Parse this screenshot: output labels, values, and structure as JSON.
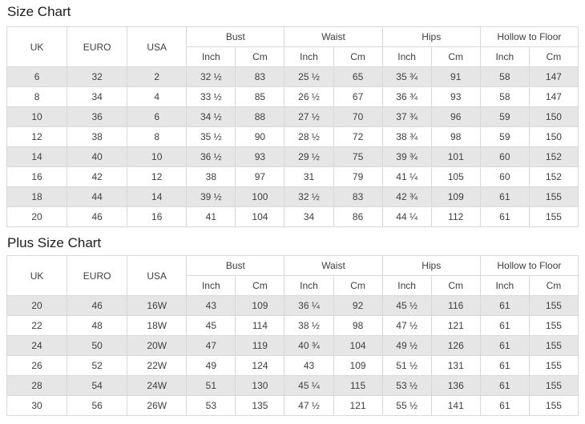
{
  "colors": {
    "row_stripe": "#e6e6e6",
    "table_border": "#d8d8d8",
    "cell_text": "#404040",
    "title_text": "#1c1c1c",
    "background": "#ffffff"
  },
  "tables": [
    {
      "title": "Size Chart",
      "headers": {
        "size_systems": [
          "UK",
          "EURO",
          "USA"
        ],
        "groups": [
          "Bust",
          "Waist",
          "Hips",
          "Hollow to Floor"
        ],
        "units": [
          "Inch",
          "Cm"
        ]
      },
      "rows": [
        [
          "6",
          "32",
          "2",
          "32 ½",
          "83",
          "25 ½",
          "65",
          "35 ¾",
          "91",
          "58",
          "147"
        ],
        [
          "8",
          "34",
          "4",
          "33 ½",
          "85",
          "26 ½",
          "67",
          "36 ¾",
          "93",
          "58",
          "147"
        ],
        [
          "10",
          "36",
          "6",
          "34 ½",
          "88",
          "27 ½",
          "70",
          "37 ¾",
          "96",
          "59",
          "150"
        ],
        [
          "12",
          "38",
          "8",
          "35 ½",
          "90",
          "28 ½",
          "72",
          "38 ¾",
          "98",
          "59",
          "150"
        ],
        [
          "14",
          "40",
          "10",
          "36 ½",
          "93",
          "29 ½",
          "75",
          "39 ¾",
          "101",
          "60",
          "152"
        ],
        [
          "16",
          "42",
          "12",
          "38",
          "97",
          "31",
          "79",
          "41 ¼",
          "105",
          "60",
          "152"
        ],
        [
          "18",
          "44",
          "14",
          "39 ½",
          "100",
          "32 ½",
          "83",
          "42 ¾",
          "109",
          "61",
          "155"
        ],
        [
          "20",
          "46",
          "16",
          "41",
          "104",
          "34",
          "86",
          "44 ¼",
          "112",
          "61",
          "155"
        ]
      ]
    },
    {
      "title": "Plus Size Chart",
      "headers": {
        "size_systems": [
          "UK",
          "EURO",
          "USA"
        ],
        "groups": [
          "Bust",
          "Waist",
          "Hips",
          "Hollow to Floor"
        ],
        "units": [
          "Inch",
          "Cm"
        ]
      },
      "rows": [
        [
          "20",
          "46",
          "16W",
          "43",
          "109",
          "36 ¼",
          "92",
          "45 ½",
          "116",
          "61",
          "155"
        ],
        [
          "22",
          "48",
          "18W",
          "45",
          "114",
          "38 ½",
          "98",
          "47 ½",
          "121",
          "61",
          "155"
        ],
        [
          "24",
          "50",
          "20W",
          "47",
          "119",
          "40 ¾",
          "104",
          "49 ½",
          "126",
          "61",
          "155"
        ],
        [
          "26",
          "52",
          "22W",
          "49",
          "124",
          "43",
          "109",
          "51 ½",
          "131",
          "61",
          "155"
        ],
        [
          "28",
          "54",
          "24W",
          "51",
          "130",
          "45 ¼",
          "115",
          "53 ½",
          "136",
          "61",
          "155"
        ],
        [
          "30",
          "56",
          "26W",
          "53",
          "135",
          "47 ½",
          "121",
          "55 ½",
          "141",
          "61",
          "155"
        ]
      ]
    }
  ]
}
